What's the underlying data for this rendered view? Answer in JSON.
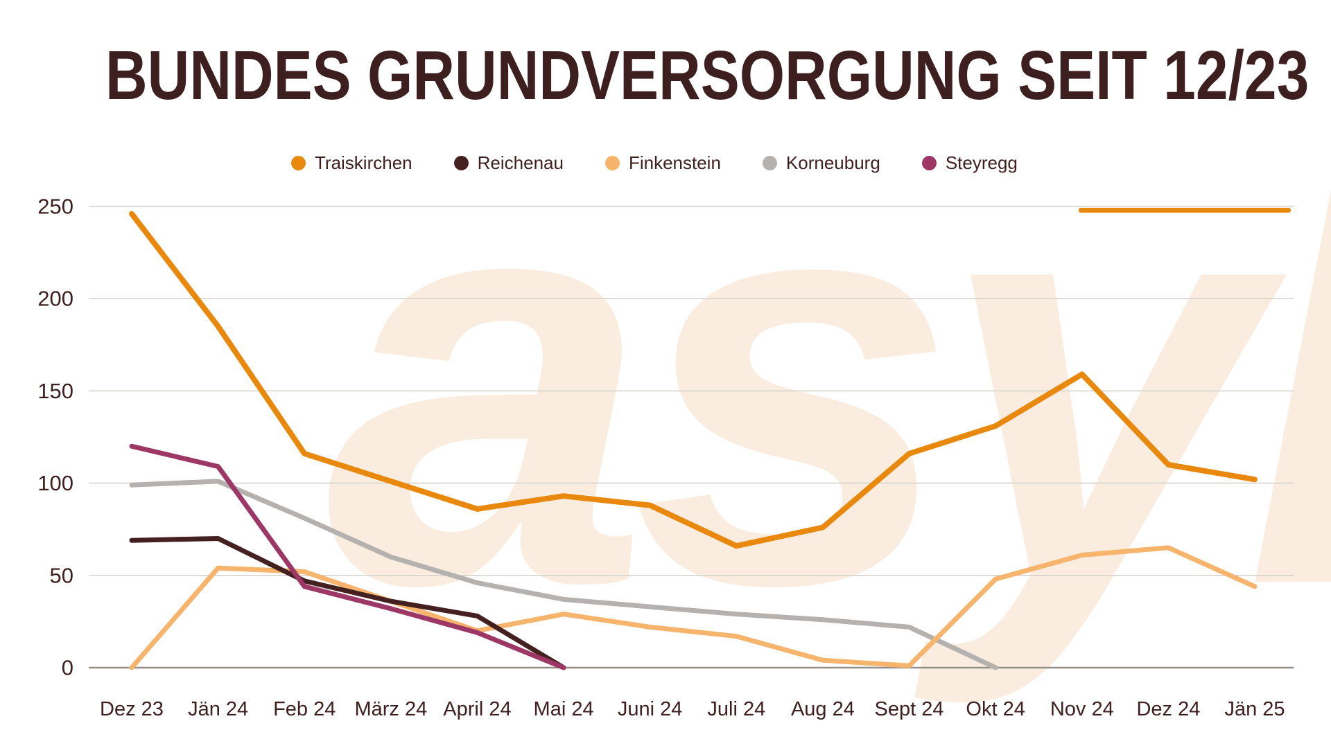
{
  "title": "BUNDES GRUNDVERSORGUNG SEIT 12/23",
  "watermark_text": "asyl",
  "colors": {
    "text": "#3E1F1F",
    "grid": "#D6D2CE",
    "axis_line": "#948E88",
    "watermark": "#FAEDDF",
    "accent_bar": "#E8890E",
    "background": "#FFFFFF"
  },
  "chart_data": {
    "type": "line",
    "title": "BUNDES GRUNDVERSORGUNG SEIT 12/23",
    "categories": [
      "Dez 23",
      "Jän 24",
      "Feb 24",
      "März 24",
      "April 24",
      "Mai 24",
      "Juni 24",
      "Juli 24",
      "Aug 24",
      "Sept 24",
      "Okt 24",
      "Nov 24",
      "Dez 24",
      "Jän 25"
    ],
    "series": [
      {
        "name": "Traiskirchen",
        "color": "#E8890E",
        "values": [
          246,
          185,
          116,
          101,
          86,
          93,
          88,
          66,
          76,
          116,
          131,
          159,
          110,
          102
        ]
      },
      {
        "name": "Reichenau",
        "color": "#452021",
        "values": [
          69,
          70,
          47,
          36,
          28,
          0,
          null,
          null,
          null,
          null,
          null,
          null,
          null,
          null
        ]
      },
      {
        "name": "Finkenstein",
        "color": "#F6B46D",
        "values": [
          0,
          54,
          52,
          36,
          20,
          29,
          22,
          17,
          4,
          1,
          48,
          61,
          65,
          44
        ]
      },
      {
        "name": "Korneuburg",
        "color": "#B5B1AF",
        "values": [
          99,
          101,
          81,
          60,
          46,
          37,
          33,
          29,
          26,
          22,
          0,
          null,
          null,
          null
        ]
      },
      {
        "name": "Steyregg",
        "color": "#9C3766",
        "values": [
          120,
          109,
          44,
          32,
          19,
          0,
          null,
          null,
          null,
          null,
          null,
          null,
          null,
          null
        ]
      }
    ],
    "ylim": [
      0,
      250
    ],
    "yticks": [
      0,
      50,
      100,
      150,
      200,
      250
    ],
    "xlabel": "",
    "ylabel": "",
    "grid": "horizontal",
    "legend_position": "top"
  }
}
